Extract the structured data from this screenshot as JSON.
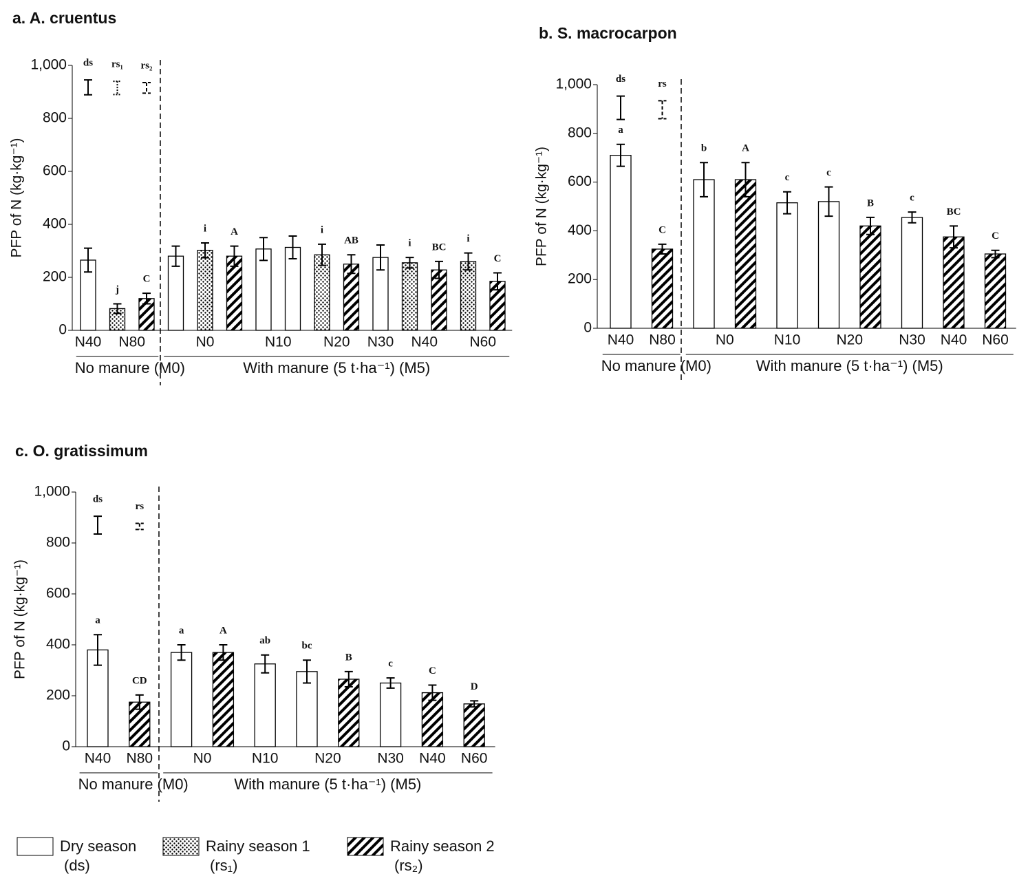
{
  "chart_data": [
    {
      "type": "bar",
      "title": "a. A. cruentus",
      "y_label": "PFP of N (kg·kg⁻¹)",
      "ylim": [
        0,
        1000
      ],
      "yticks": [
        0,
        200,
        400,
        600,
        800,
        {
          "value": 1000,
          "label": "1,000"
        }
      ],
      "lsd": [
        {
          "label": "ds",
          "season": 0,
          "value": 917,
          "error": 28
        },
        {
          "label": "rs₁",
          "season": 1,
          "value": 915,
          "error": 25
        },
        {
          "label": "rs₂",
          "season": 2,
          "value": 915,
          "error": 20
        }
      ],
      "bars": [
        {
          "category": "N40",
          "section": "No manure (M0)",
          "season": 0,
          "value": 265,
          "error": 45,
          "letter": null
        },
        {
          "category": "N80",
          "section": null,
          "season": 1,
          "value": 82,
          "error": 18,
          "letter": "j"
        },
        {
          "category": null,
          "section": null,
          "season": 2,
          "value": 120,
          "error": 20,
          "letter": "C"
        },
        {
          "category": "N0",
          "section": "With manure (5 t·ha⁻¹) (M5)",
          "season": 0,
          "value": 280,
          "error": 38,
          "letter": null
        },
        {
          "category": null,
          "section": null,
          "season": 1,
          "value": 302,
          "error": 28,
          "letter": "i"
        },
        {
          "category": null,
          "section": null,
          "season": 2,
          "value": 280,
          "error": 38,
          "letter": "A"
        },
        {
          "category": "N10",
          "section": null,
          "season": 0,
          "value": 307,
          "error": 43,
          "letter": null
        },
        {
          "category": null,
          "section": null,
          "season": 0,
          "value": 313,
          "error": 43,
          "letter": null
        },
        {
          "category": "N20",
          "section": null,
          "season": 1,
          "value": 285,
          "error": 40,
          "letter": "i"
        },
        {
          "category": null,
          "section": null,
          "season": 2,
          "value": 250,
          "error": 35,
          "letter": "AB"
        },
        {
          "category": "N30",
          "section": null,
          "season": 0,
          "value": 275,
          "error": 47,
          "letter": null
        },
        {
          "category": "N40",
          "section": null,
          "season": 1,
          "value": 255,
          "error": 20,
          "letter": "i"
        },
        {
          "category": null,
          "section": null,
          "season": 2,
          "value": 228,
          "error": 32,
          "letter": "BC"
        },
        {
          "category": "N60",
          "section": null,
          "season": 1,
          "value": 260,
          "error": 32,
          "letter": "i"
        },
        {
          "category": null,
          "section": null,
          "season": 2,
          "value": 185,
          "error": 32,
          "letter": "C"
        }
      ]
    },
    {
      "type": "bar",
      "title": "b. S. macrocarpon",
      "y_label": "PFP of N (kg·kg⁻¹)",
      "ylim": [
        0,
        1000
      ],
      "yticks": [
        0,
        200,
        400,
        600,
        800,
        {
          "value": 1000,
          "label": "1,000"
        }
      ],
      "lsd": [
        {
          "label": "ds",
          "season": 0,
          "value": 905,
          "error": 48
        },
        {
          "label": "rs",
          "season": 2,
          "value": 897,
          "error": 37
        }
      ],
      "bars": [
        {
          "category": "N40",
          "section": "No manure (M0)",
          "season": 0,
          "value": 710,
          "error": 45,
          "letter": "a"
        },
        {
          "category": "N80",
          "section": null,
          "season": 2,
          "value": 325,
          "error": 20,
          "letter": "C"
        },
        {
          "category": "N0",
          "section": "With manure (5 t·ha⁻¹) (M5)",
          "season": 0,
          "value": 610,
          "error": 70,
          "letter": "b"
        },
        {
          "category": null,
          "section": null,
          "season": 2,
          "value": 610,
          "error": 70,
          "letter": "A"
        },
        {
          "category": "N10",
          "section": null,
          "season": 0,
          "value": 515,
          "error": 45,
          "letter": "c"
        },
        {
          "category": "N20",
          "section": null,
          "season": 0,
          "value": 520,
          "error": 60,
          "letter": "c"
        },
        {
          "category": null,
          "section": null,
          "season": 2,
          "value": 420,
          "error": 35,
          "letter": "B"
        },
        {
          "category": "N30",
          "section": null,
          "season": 0,
          "value": 455,
          "error": 22,
          "letter": "c"
        },
        {
          "category": "N40",
          "section": null,
          "season": 2,
          "value": 375,
          "error": 45,
          "letter": "BC"
        },
        {
          "category": "N60",
          "section": null,
          "season": 2,
          "value": 305,
          "error": 15,
          "letter": "C"
        }
      ]
    },
    {
      "type": "bar",
      "title": "c. O. gratissimum",
      "y_label": "PFP of N (kg·kg⁻¹)",
      "ylim": [
        0,
        1000
      ],
      "yticks": [
        0,
        200,
        400,
        600,
        800,
        {
          "value": 1000,
          "label": "1,000"
        }
      ],
      "lsd": [
        {
          "label": "ds",
          "season": 0,
          "value": 870,
          "error": 35
        },
        {
          "label": "rs",
          "season": 2,
          "value": 865,
          "error": 12
        }
      ],
      "bars": [
        {
          "category": "N40",
          "section": "No manure (M0)",
          "season": 0,
          "value": 380,
          "error": 60,
          "letter": "a"
        },
        {
          "category": "N80",
          "section": null,
          "season": 2,
          "value": 175,
          "error": 28,
          "letter": "CD"
        },
        {
          "category": "N0",
          "section": "With manure (5 t·ha⁻¹) (M5)",
          "season": 0,
          "value": 370,
          "error": 30,
          "letter": "a"
        },
        {
          "category": null,
          "section": null,
          "season": 2,
          "value": 370,
          "error": 30,
          "letter": "A"
        },
        {
          "category": "N10",
          "section": null,
          "season": 0,
          "value": 325,
          "error": 35,
          "letter": "ab"
        },
        {
          "category": "N20",
          "section": null,
          "season": 0,
          "value": 295,
          "error": 45,
          "letter": "bc"
        },
        {
          "category": null,
          "section": null,
          "season": 2,
          "value": 265,
          "error": 30,
          "letter": "B"
        },
        {
          "category": "N30",
          "section": null,
          "season": 0,
          "value": 250,
          "error": 20,
          "letter": "c"
        },
        {
          "category": "N40",
          "section": null,
          "season": 2,
          "value": 212,
          "error": 30,
          "letter": "C"
        },
        {
          "category": "N60",
          "section": null,
          "season": 2,
          "value": 168,
          "error": 12,
          "letter": "D"
        }
      ]
    }
  ],
  "legend": [
    {
      "name": "Dry season",
      "abbr": "(ds)",
      "fill": "white"
    },
    {
      "name": "Rainy season 1",
      "abbr": "(rs₁)",
      "fill": "dots"
    },
    {
      "name": "Rainy season 2",
      "abbr": "(rs₂)",
      "fill": "hatch"
    }
  ]
}
